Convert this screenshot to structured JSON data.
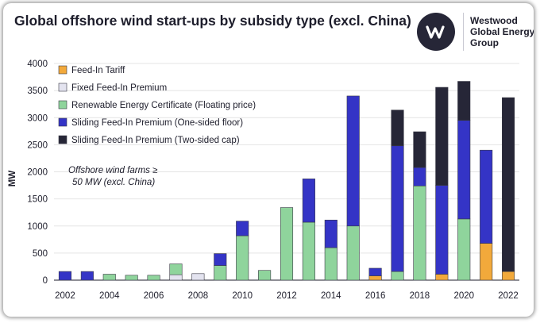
{
  "header": {
    "title": "Global offshore wind start-ups by subsidy type (excl. China)",
    "logo_lines": [
      "Westwood",
      "Global Energy",
      "Group"
    ]
  },
  "colors": {
    "feed_in_tariff": "#f2a93b",
    "fixed_feed_in_premium": "#e3e3ef",
    "renewable_energy_certificate": "#8fd49c",
    "sliding_one_sided": "#3434c6",
    "sliding_two_sided": "#262637"
  },
  "chart_data": {
    "type": "bar",
    "stacked": true,
    "x": [
      2002,
      2003,
      2004,
      2005,
      2006,
      2007,
      2008,
      2009,
      2010,
      2011,
      2012,
      2013,
      2014,
      2015,
      2016,
      2017,
      2018,
      2019,
      2020,
      2021,
      2022
    ],
    "xticks": [
      "2002",
      "2004",
      "2006",
      "2008",
      "2010",
      "2012",
      "2014",
      "2016",
      "2018",
      "2020",
      "2022"
    ],
    "ylabel": "MW",
    "ylim": [
      0,
      4000
    ],
    "yticks": [
      "0",
      "500",
      "1000",
      "1500",
      "2000",
      "2500",
      "3000",
      "3500",
      "4000"
    ],
    "series": [
      {
        "name": "Feed-In Tariff",
        "color_key": "feed_in_tariff",
        "values": [
          0,
          0,
          0,
          0,
          0,
          0,
          0,
          0,
          0,
          0,
          0,
          0,
          0,
          0,
          80,
          0,
          0,
          110,
          0,
          680,
          160
        ]
      },
      {
        "name": "Fixed Feed-In Premium",
        "color_key": "fixed_feed_in_premium",
        "values": [
          0,
          0,
          0,
          0,
          0,
          100,
          120,
          0,
          0,
          0,
          0,
          0,
          0,
          0,
          0,
          0,
          0,
          0,
          0,
          0,
          0
        ]
      },
      {
        "name": "Renewable Energy Certificate (Floating price)",
        "color_key": "renewable_energy_certificate",
        "values": [
          0,
          0,
          110,
          90,
          90,
          200,
          0,
          270,
          820,
          180,
          1340,
          1070,
          600,
          1000,
          0,
          160,
          1740,
          0,
          1130,
          0,
          0
        ]
      },
      {
        "name": "Sliding Feed-In Premium (One-sided floor)",
        "color_key": "sliding_one_sided",
        "values": [
          160,
          160,
          0,
          0,
          0,
          0,
          0,
          220,
          270,
          0,
          0,
          800,
          510,
          2400,
          140,
          2320,
          340,
          1640,
          1820,
          1720,
          0
        ]
      },
      {
        "name": "Sliding Feed-In Premium (Two-sided cap)",
        "color_key": "sliding_two_sided",
        "values": [
          0,
          0,
          0,
          0,
          0,
          0,
          0,
          0,
          0,
          0,
          0,
          0,
          0,
          0,
          0,
          660,
          660,
          1810,
          720,
          0,
          3210
        ]
      }
    ],
    "legend_position": "top-left",
    "annotation": [
      "Offshore wind farms ≥",
      "50 MW (excl. China)"
    ]
  }
}
